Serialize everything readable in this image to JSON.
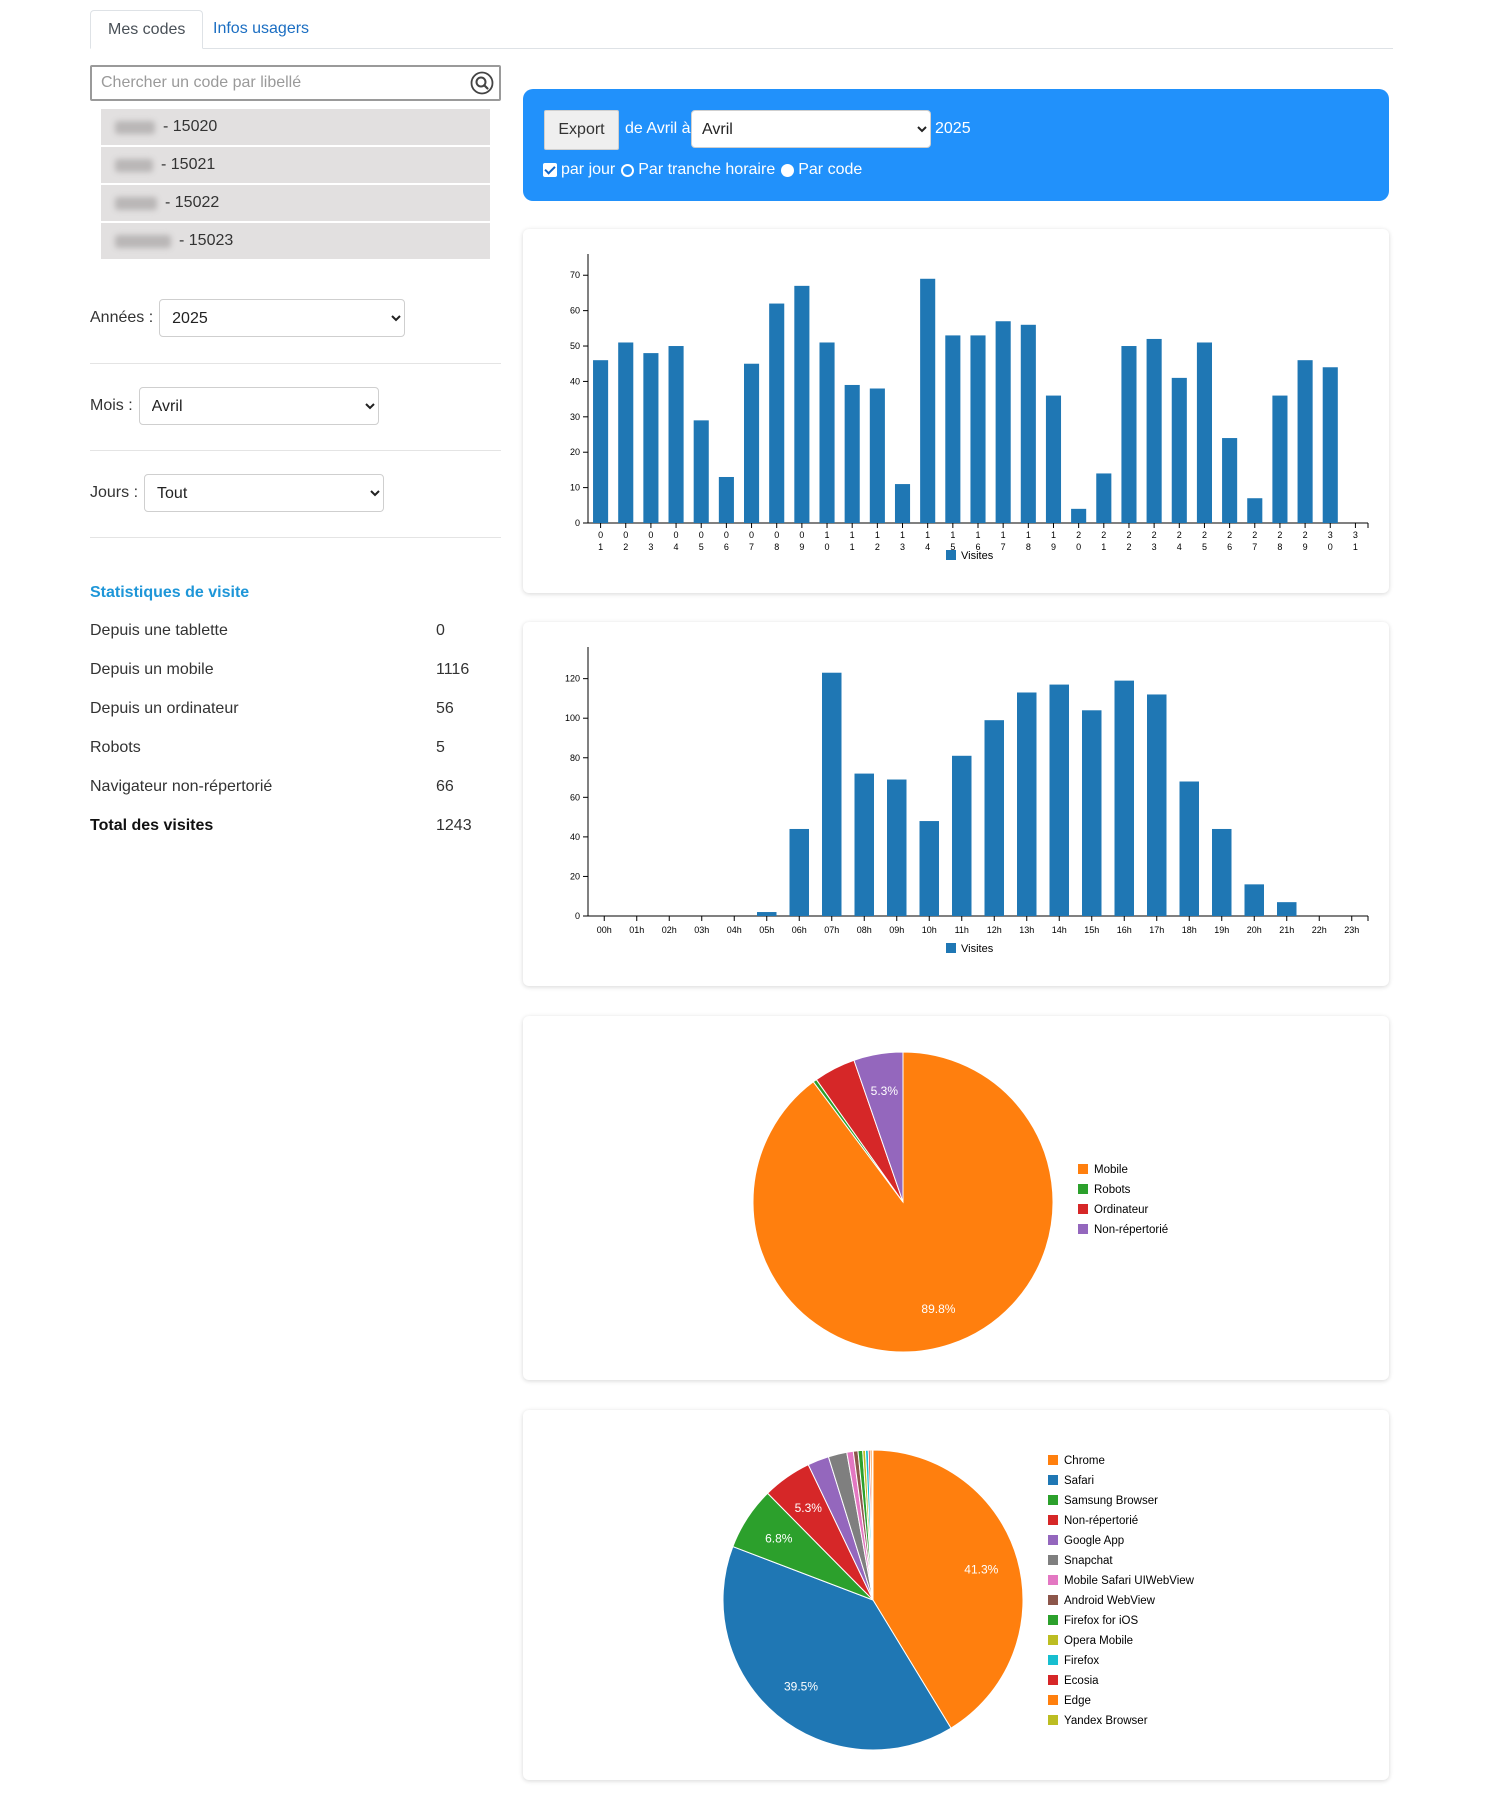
{
  "tabs": [
    {
      "label": "Mes codes"
    },
    {
      "label": "Infos usagers"
    }
  ],
  "search": {
    "placeholder": "Chercher un code par libellé",
    "value": ""
  },
  "codes": [
    {
      "label": "- 15020"
    },
    {
      "label": "- 15021"
    },
    {
      "label": "- 15022"
    },
    {
      "label": "- 15023"
    }
  ],
  "filters": {
    "annees": {
      "label": "Années :",
      "value": "2025"
    },
    "mois": {
      "label": "Mois :",
      "value": "Avril"
    },
    "jours": {
      "label": "Jours :",
      "value": "Tout"
    }
  },
  "stats": {
    "title": "Statistiques de visite",
    "rows": [
      {
        "label": "Depuis une tablette",
        "value": "0"
      },
      {
        "label": "Depuis un mobile",
        "value": "1116"
      },
      {
        "label": "Depuis un ordinateur",
        "value": "56"
      },
      {
        "label": "Robots",
        "value": "5"
      },
      {
        "label": "Navigateur non-répertorié",
        "value": "66"
      }
    ],
    "total": {
      "label": "Total des visites",
      "value": "1243"
    }
  },
  "export": {
    "button": "Export",
    "range_label": "de Avril à",
    "month": "Avril",
    "year": "2025",
    "options": [
      {
        "label": "par jour",
        "state": "checked"
      },
      {
        "label": "Par tranche horaire",
        "state": "empty"
      },
      {
        "label": "Par code",
        "state": "full"
      }
    ]
  },
  "colors": {
    "accent": "#2191fb",
    "bar": "#1f77b4",
    "link": "#1b6ec2",
    "stats_title": "#1e96d8"
  },
  "chart_data": [
    {
      "type": "bar",
      "categories": [
        "01",
        "02",
        "03",
        "04",
        "05",
        "06",
        "07",
        "08",
        "09",
        "10",
        "11",
        "12",
        "13",
        "14",
        "15",
        "16",
        "17",
        "18",
        "19",
        "20",
        "21",
        "22",
        "23",
        "24",
        "25",
        "26",
        "27",
        "28",
        "29",
        "30",
        "31"
      ],
      "series": [
        {
          "name": "Visites",
          "values": [
            46,
            51,
            48,
            50,
            29,
            13,
            45,
            62,
            67,
            51,
            39,
            38,
            11,
            69,
            53,
            53,
            57,
            56,
            36,
            4,
            14,
            50,
            52,
            41,
            51,
            24,
            7,
            36,
            46,
            44,
            0
          ]
        }
      ],
      "yticks": [
        0,
        10,
        20,
        30,
        40,
        50,
        60,
        70
      ],
      "ylim": [
        0,
        76
      ],
      "legend": "bottom"
    },
    {
      "type": "bar",
      "categories": [
        "00h",
        "01h",
        "02h",
        "03h",
        "04h",
        "05h",
        "06h",
        "07h",
        "08h",
        "09h",
        "10h",
        "11h",
        "12h",
        "13h",
        "14h",
        "15h",
        "16h",
        "17h",
        "18h",
        "19h",
        "20h",
        "21h",
        "22h",
        "23h"
      ],
      "series": [
        {
          "name": "Visites",
          "values": [
            0,
            0,
            0,
            0,
            0,
            2,
            44,
            123,
            72,
            69,
            48,
            81,
            99,
            113,
            117,
            104,
            119,
            112,
            68,
            44,
            16,
            7,
            0,
            0
          ]
        }
      ],
      "yticks": [
        0,
        20,
        40,
        60,
        80,
        100,
        120
      ],
      "ylim": [
        0,
        136
      ],
      "legend": "bottom"
    },
    {
      "type": "pie",
      "slices": [
        {
          "label": "Mobile",
          "value": 89.8,
          "color": "#ff7f0e",
          "text": "89.8%"
        },
        {
          "label": "Robots",
          "value": 0.4,
          "color": "#2ca02c",
          "text": ""
        },
        {
          "label": "Ordinateur",
          "value": 4.5,
          "color": "#d62728",
          "text": ""
        },
        {
          "label": "Non-répertorié",
          "value": 5.3,
          "color": "#9467bd",
          "text": "5.3%"
        }
      ],
      "legend": "right"
    },
    {
      "type": "pie",
      "slices": [
        {
          "label": "Chrome",
          "value": 41.3,
          "color": "#ff7f0e",
          "text": "41.3%"
        },
        {
          "label": "Safari",
          "value": 39.5,
          "color": "#1f77b4",
          "text": "39.5%"
        },
        {
          "label": "Samsung Browser",
          "value": 6.8,
          "color": "#2ca02c",
          "text": "6.8%"
        },
        {
          "label": "Non-répertorié",
          "value": 5.3,
          "color": "#d62728",
          "text": "5.3%"
        },
        {
          "label": "Google App",
          "value": 2.3,
          "color": "#9467bd",
          "text": ""
        },
        {
          "label": "Snapchat",
          "value": 2.0,
          "color": "#7f7f7f",
          "text": ""
        },
        {
          "label": "Mobile Safari UIWebView",
          "value": 0.7,
          "color": "#e377c2",
          "text": ""
        },
        {
          "label": "Android WebView",
          "value": 0.5,
          "color": "#8c564b",
          "text": ""
        },
        {
          "label": "Firefox for iOS",
          "value": 0.5,
          "color": "#2ca02c",
          "text": ""
        },
        {
          "label": "Opera Mobile",
          "value": 0.3,
          "color": "#bcbd22",
          "text": ""
        },
        {
          "label": "Firefox",
          "value": 0.3,
          "color": "#17becf",
          "text": ""
        },
        {
          "label": "Ecosia",
          "value": 0.2,
          "color": "#d62728",
          "text": ""
        },
        {
          "label": "Edge",
          "value": 0.2,
          "color": "#ff7f0e",
          "text": ""
        },
        {
          "label": "Yandex Browser",
          "value": 0.1,
          "color": "#bcbd22",
          "text": ""
        }
      ],
      "legend": "right"
    }
  ]
}
